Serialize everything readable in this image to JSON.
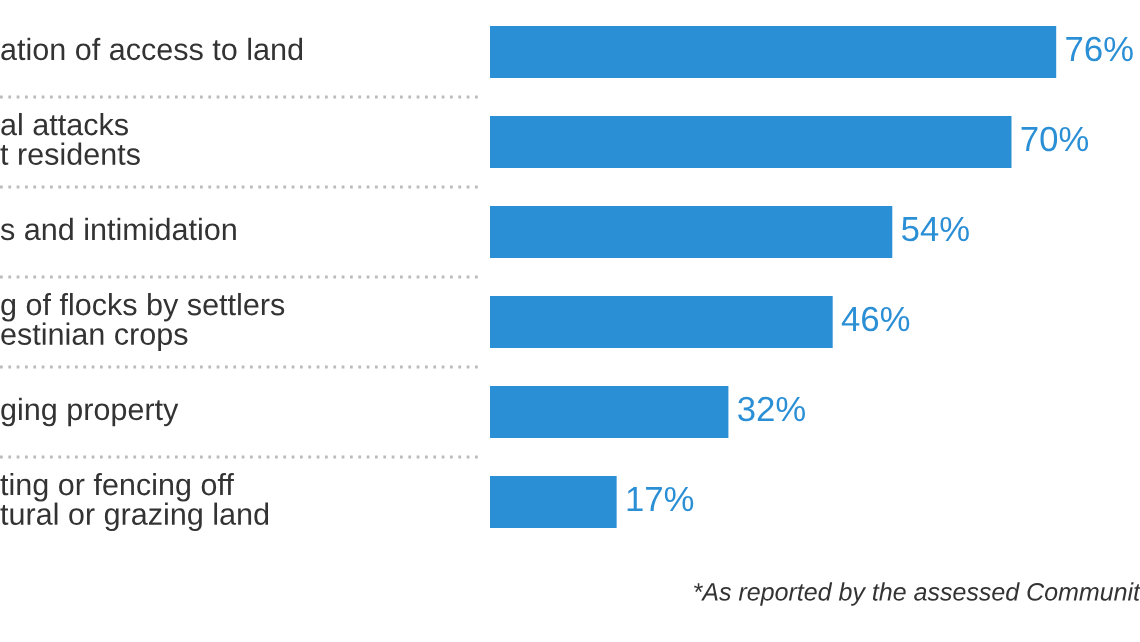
{
  "chart_data": {
    "type": "bar",
    "orientation": "horizontal",
    "categories": [
      "ation of access to land",
      "al attacks\nt residents",
      "s and intimidation",
      "g of flocks by settlers\nestinian crops",
      "ging property",
      "ting or fencing off\ntural or grazing land"
    ],
    "values": [
      76,
      70,
      54,
      46,
      32,
      17
    ],
    "value_labels": [
      "76%",
      "70%",
      "54%",
      "46%",
      "32%",
      "17%"
    ],
    "color": "#2b8fd6",
    "annotations": [
      "*As reported by the assessed Communit"
    ]
  }
}
